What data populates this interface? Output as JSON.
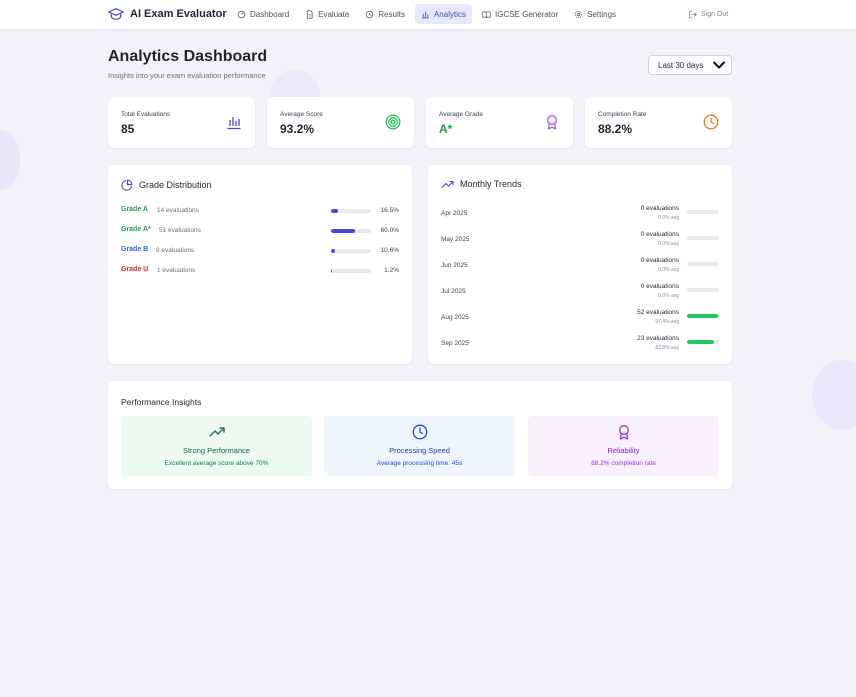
{
  "app": {
    "title": "AI Exam Evaluator"
  },
  "nav": {
    "items": [
      {
        "label": "Dashboard",
        "icon": "dashboard-icon"
      },
      {
        "label": "Evaluate",
        "icon": "document-icon"
      },
      {
        "label": "Results",
        "icon": "history-icon"
      },
      {
        "label": "Analytics",
        "icon": "bar-chart-icon",
        "active": true
      },
      {
        "label": "IGCSE Generator",
        "icon": "book-icon"
      },
      {
        "label": "Settings",
        "icon": "gear-icon"
      }
    ],
    "signout": "Sign Out"
  },
  "header": {
    "title": "Analytics Dashboard",
    "subtitle": "Insights into your exam evaluation performance",
    "range": "Last 30 days"
  },
  "stats": [
    {
      "label": "Total Evaluations",
      "value": "85",
      "icon": "bar-chart-icon",
      "color": "#4a47d6"
    },
    {
      "label": "Average Score",
      "value": "93.2%",
      "icon": "target-icon",
      "color": "#22c55e"
    },
    {
      "label": "Average Grade",
      "value": "A*",
      "icon": "award-icon",
      "color": "#a855f7",
      "value_color": "#16a34a"
    },
    {
      "label": "Completion Rate",
      "value": "88.2%",
      "icon": "clock-icon",
      "color": "#f97316"
    }
  ],
  "grade_distribution": {
    "title": "Grade Distribution",
    "rows": [
      {
        "grade": "Grade A",
        "count": "14 evaluations",
        "pct": "16.5%",
        "fill": 0.165,
        "color": "#16a34a"
      },
      {
        "grade": "Grade A*",
        "count": "51 evaluations",
        "pct": "60.0%",
        "fill": 0.6,
        "color": "#16a34a"
      },
      {
        "grade": "Grade B",
        "count": "9 evaluations",
        "pct": "10.6%",
        "fill": 0.106,
        "color": "#2563eb"
      },
      {
        "grade": "Grade U",
        "count": "1 evaluations",
        "pct": "1.2%",
        "fill": 0.012,
        "color": "#dc2626"
      }
    ]
  },
  "monthly_trends": {
    "title": "Monthly Trends",
    "rows": [
      {
        "month": "Apr 2025",
        "count": "0 evaluations",
        "avg": "0.0% avg",
        "fill": 0
      },
      {
        "month": "May 2025",
        "count": "0 evaluations",
        "avg": "0.0% avg",
        "fill": 0
      },
      {
        "month": "Jun 2025",
        "count": "0 evaluations",
        "avg": "0.0% avg",
        "fill": 0
      },
      {
        "month": "Jul 2025",
        "count": "0 evaluations",
        "avg": "0.0% avg",
        "fill": 0
      },
      {
        "month": "Aug 2025",
        "count": "52 evaluations",
        "avg": "97.4% avg",
        "fill": 0.974
      },
      {
        "month": "Sep 2025",
        "count": "23 evaluations",
        "avg": "83.8% avg",
        "fill": 0.838
      }
    ]
  },
  "insights": {
    "title": "Performance Insights",
    "cards": [
      {
        "title": "Strong Performance",
        "desc": "Excellent average score above 70%",
        "icon": "trending-up-icon",
        "bg": "#eefaf1",
        "color": "#15803d",
        "title_color": "#166534"
      },
      {
        "title": "Processing Speed",
        "desc": "Average processing time: 45s",
        "icon": "clock-icon",
        "bg": "#eef5fd",
        "color": "#1d4ed8",
        "title_color": "#1e40af"
      },
      {
        "title": "Reliability",
        "desc": "88.2% completion rate",
        "icon": "award-icon",
        "bg": "#f7f1fd",
        "color": "#9333ea",
        "title_color": "#7e22ce"
      }
    ]
  }
}
